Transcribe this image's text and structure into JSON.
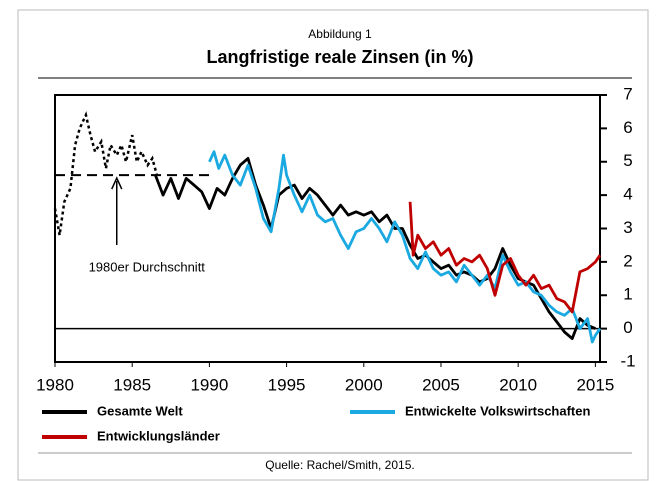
{
  "chart_data": {
    "type": "line",
    "supertitle": "Abbildung 1",
    "title": "Langfristige reale Zinsen (in %)",
    "source": "Quelle: Rachel/Smith, 2015.",
    "xlim": [
      1980,
      2015.3
    ],
    "xticks": [
      1980,
      1985,
      1990,
      1995,
      2000,
      2005,
      2010,
      2015
    ],
    "ylim": [
      -1,
      7
    ],
    "yticks": [
      -1,
      0,
      1,
      2,
      3,
      4,
      5,
      6,
      7
    ],
    "y_axis_side": "right",
    "zero_line": true,
    "series": [
      {
        "name": "Gesamte Welt",
        "color": "#000000",
        "x": [
          1986.5,
          1987,
          1987.5,
          1988,
          1988.5,
          1989,
          1989.5,
          1990,
          1990.5,
          1991,
          1991.5,
          1992,
          1992.5,
          1993,
          1993.5,
          1994,
          1994.5,
          1995,
          1995.5,
          1996,
          1996.5,
          1997,
          1997.5,
          1998,
          1998.5,
          1999,
          1999.5,
          2000,
          2000.5,
          2001,
          2001.5,
          2002,
          2002.5,
          2003,
          2003.5,
          2004,
          2004.5,
          2005,
          2005.5,
          2006,
          2006.5,
          2007,
          2007.5,
          2008,
          2008.5,
          2009,
          2009.5,
          2010,
          2010.5,
          2011,
          2011.5,
          2012,
          2012.5,
          2013,
          2013.5,
          2014,
          2014.5,
          2015
        ],
        "values": [
          4.6,
          4.0,
          4.5,
          3.9,
          4.5,
          4.3,
          4.1,
          3.6,
          4.2,
          4.0,
          4.5,
          4.9,
          5.1,
          4.3,
          3.7,
          3.0,
          4.0,
          4.2,
          4.3,
          3.9,
          4.2,
          4.0,
          3.7,
          3.4,
          3.7,
          3.4,
          3.5,
          3.4,
          3.5,
          3.2,
          3.4,
          3.0,
          3.0,
          2.5,
          2.1,
          2.2,
          2.0,
          1.8,
          1.9,
          1.6,
          1.7,
          1.6,
          1.4,
          1.5,
          1.8,
          2.4,
          1.9,
          1.5,
          1.4,
          1.3,
          0.9,
          0.5,
          0.2,
          -0.1,
          -0.3,
          0.3,
          0.1,
          0.0
        ]
      },
      {
        "name": "Entwickelte Volkswirtschaften",
        "color": "#1ba9e1",
        "x": [
          1990,
          1990.3,
          1990.6,
          1991,
          1991.5,
          1992,
          1992.5,
          1993,
          1993.5,
          1994,
          1994.5,
          1994.8,
          1995,
          1995.5,
          1996,
          1996.5,
          1997,
          1997.5,
          1998,
          1998.5,
          1999,
          1999.5,
          2000,
          2000.5,
          2001,
          2001.5,
          2002,
          2002.5,
          2003,
          2003.5,
          2004,
          2004.5,
          2005,
          2005.5,
          2006,
          2006.5,
          2007,
          2007.5,
          2008,
          2008.5,
          2009,
          2009.5,
          2010,
          2010.5,
          2011,
          2011.5,
          2012,
          2012.5,
          2013,
          2013.5,
          2014,
          2014.5,
          2014.8,
          2015,
          2015.3
        ],
        "values": [
          5.0,
          5.3,
          4.8,
          5.2,
          4.6,
          4.3,
          4.9,
          4.2,
          3.3,
          2.9,
          4.2,
          5.2,
          4.6,
          4.0,
          3.5,
          4.0,
          3.4,
          3.2,
          3.3,
          2.8,
          2.4,
          2.9,
          3.0,
          3.3,
          3.0,
          2.6,
          3.2,
          2.8,
          2.1,
          1.8,
          2.3,
          1.8,
          1.6,
          1.7,
          1.4,
          1.9,
          1.6,
          1.3,
          1.6,
          1.2,
          2.2,
          1.7,
          1.3,
          1.4,
          1.1,
          1.0,
          0.7,
          0.5,
          0.4,
          0.6,
          0.0,
          0.3,
          -0.4,
          -0.2,
          0.0
        ]
      },
      {
        "name": "Entwicklungsländer",
        "color": "#c00000",
        "x": [
          2003,
          2003.2,
          2003.5,
          2004,
          2004.5,
          2005,
          2005.5,
          2006,
          2006.5,
          2007,
          2007.5,
          2008,
          2008.5,
          2009,
          2009.5,
          2010,
          2010.5,
          2011,
          2011.5,
          2012,
          2012.5,
          2013,
          2013.5,
          2014,
          2014.5,
          2015,
          2015.3
        ],
        "values": [
          3.8,
          2.2,
          2.8,
          2.4,
          2.6,
          2.2,
          2.4,
          1.9,
          2.1,
          2.0,
          2.2,
          1.8,
          1.0,
          1.9,
          2.1,
          1.6,
          1.3,
          1.6,
          1.2,
          1.3,
          0.9,
          0.8,
          0.5,
          1.7,
          1.8,
          2.0,
          2.2
        ]
      }
    ],
    "early_estimate": {
      "color": "#000000",
      "style": "dotted",
      "x": [
        1980,
        1980.3,
        1980.6,
        1981,
        1981.3,
        1981.6,
        1982,
        1982.3,
        1982.6,
        1983,
        1983.3,
        1983.6,
        1984,
        1984.3,
        1984.6,
        1985,
        1985.3,
        1985.6,
        1986,
        1986.3,
        1986.6
      ],
      "values": [
        3.6,
        2.8,
        3.8,
        4.2,
        5.5,
        6.0,
        6.4,
        5.8,
        5.3,
        5.6,
        4.8,
        5.5,
        5.2,
        5.5,
        5.0,
        5.8,
        5.0,
        5.3,
        4.9,
        5.1,
        4.6
      ]
    },
    "average_line": {
      "label": "1980er Durchschnitt",
      "value": 4.6,
      "x": [
        1980,
        1990
      ],
      "arrow_x": 1984
    }
  }
}
